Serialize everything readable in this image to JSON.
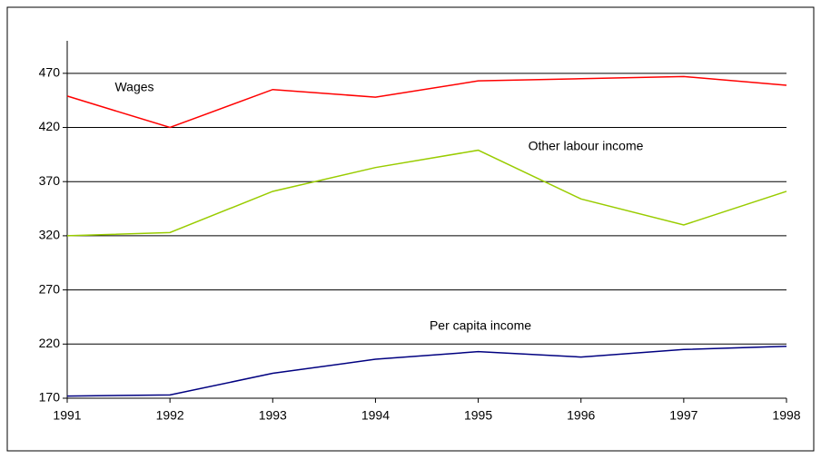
{
  "chart_data": {
    "type": "line",
    "x": [
      1991,
      1992,
      1993,
      1994,
      1995,
      1996,
      1997,
      1998
    ],
    "xlim": [
      1991,
      1998
    ],
    "xticks": [
      1991,
      1992,
      1993,
      1994,
      1995,
      1996,
      1997,
      1998
    ],
    "ylim": [
      170,
      500
    ],
    "yticks": [
      170,
      220,
      270,
      320,
      370,
      420,
      470
    ],
    "grid": true,
    "series": [
      {
        "name": "Wages",
        "color": "#ff0000",
        "values": [
          449,
          420,
          455,
          448,
          463,
          465,
          467,
          459
        ]
      },
      {
        "name": "Other labour income",
        "color": "#99cc00",
        "values": [
          320,
          323,
          361,
          383,
          399,
          354,
          330,
          361
        ]
      },
      {
        "name": "Per capita income",
        "color": "#000080",
        "values": [
          172,
          173,
          193,
          206,
          213,
          208,
          215,
          218
        ]
      }
    ]
  }
}
